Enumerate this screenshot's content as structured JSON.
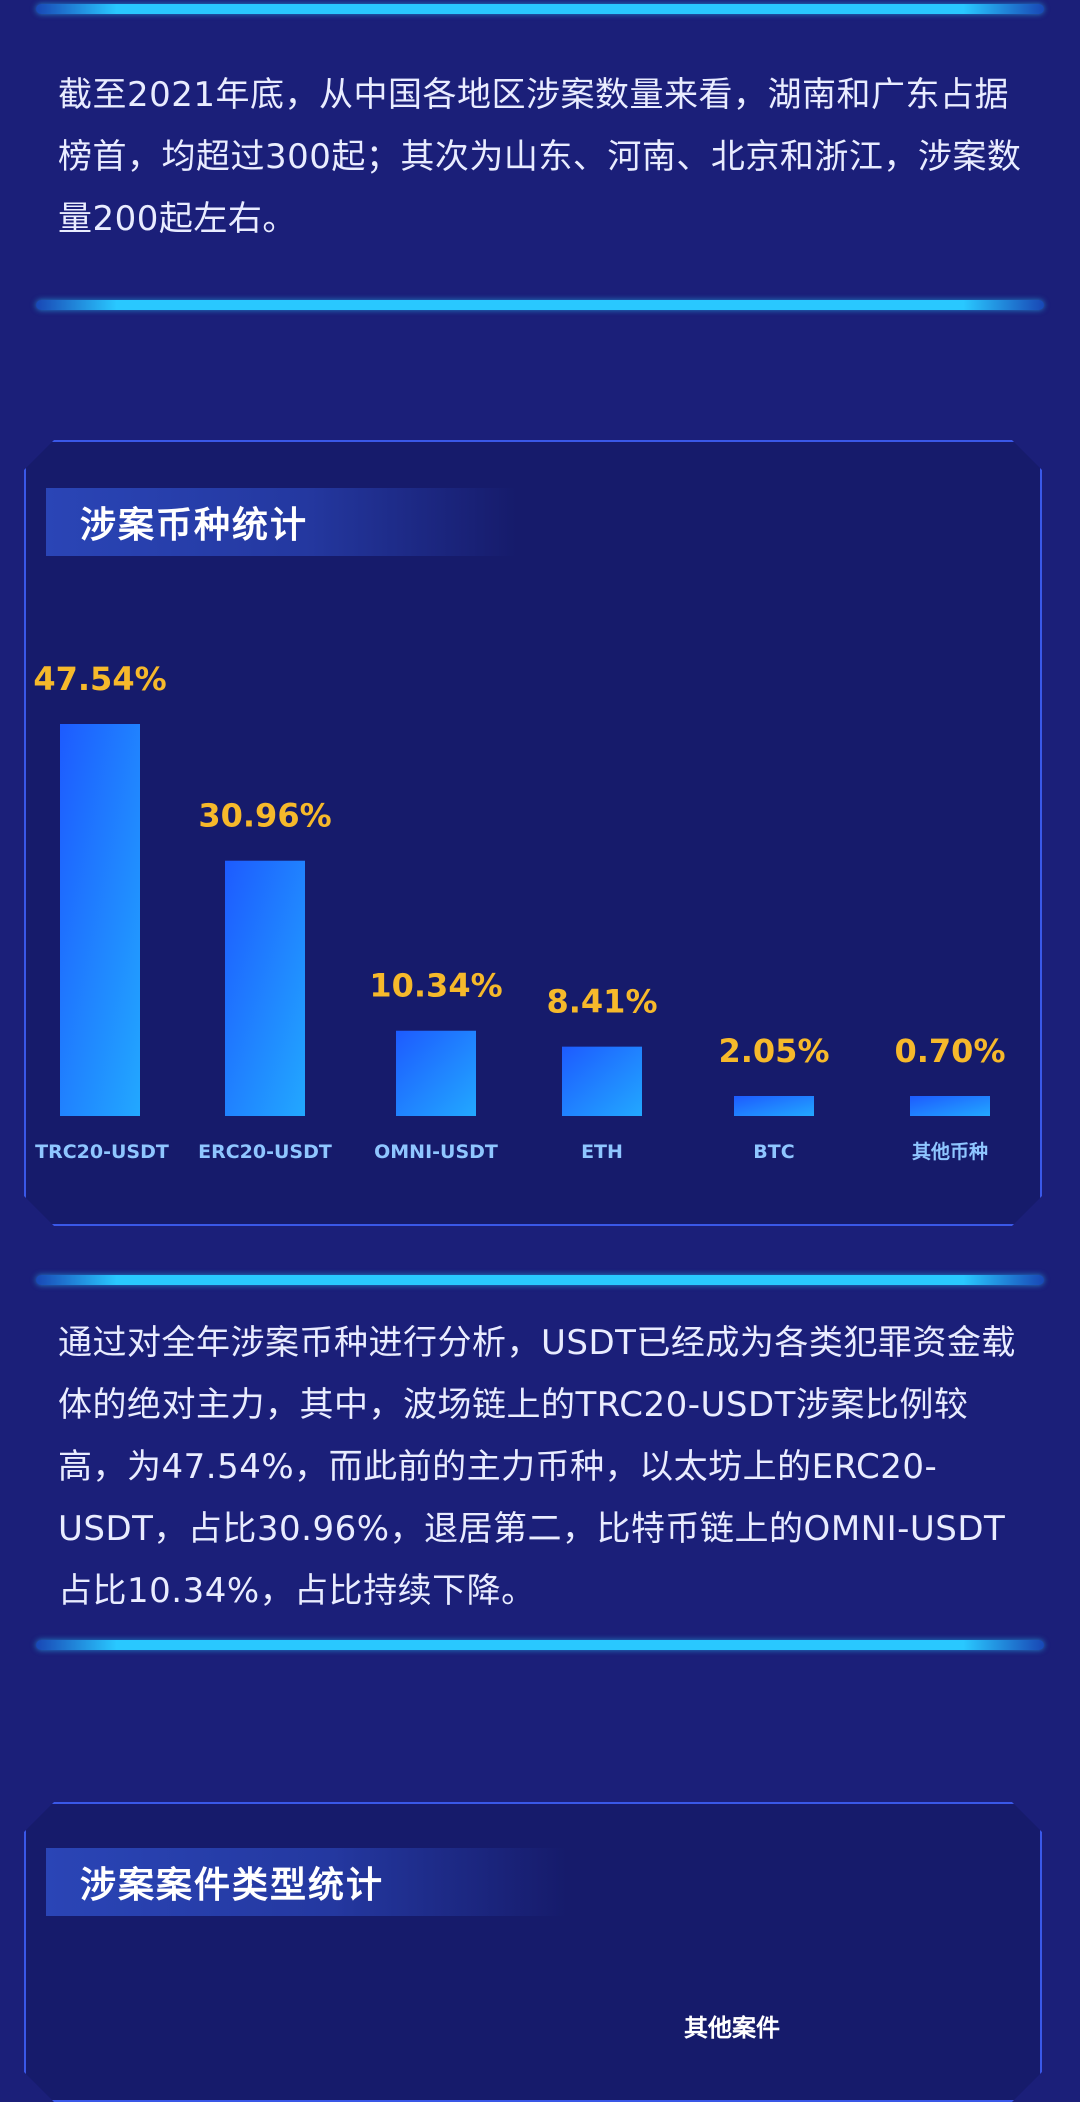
{
  "intro_paragraph": "截至2021年底，从中国各地区涉案数量来看，湖南和广东占据榜首，均超过300起；其次为山东、河南、北京和浙江，涉案数量200起左右。",
  "currency_section": {
    "title": "涉案币种统计",
    "paragraph": "通过对全年涉案币种进行分析，USDT已经成为各类犯罪资金载体的绝对主力，其中，波场链上的TRC20-USDT涉案比例较高，为47.54%，而此前的主力币种，以太坊上的ERC20-USDT，占比30.96%，退居第二，比特币链上的OMNI-USDT占比10.34%，占比持续下降。"
  },
  "case_type_section": {
    "title": "涉案案件类型统计",
    "partial_label": "其他案件"
  },
  "colors": {
    "background": "#1b1f79",
    "panel": "#161b6b",
    "accent_cyan": "#29c8ff",
    "value_label": "#f6b92b",
    "bar_top": "#1d5bff",
    "bar_bottom": "#22a8ff"
  },
  "chart_data": {
    "type": "bar",
    "categories": [
      "TRC20-USDT",
      "ERC20-USDT",
      "OMNI-USDT",
      "ETH",
      "BTC",
      "其他币种"
    ],
    "values": [
      47.54,
      30.96,
      10.34,
      8.41,
      2.05,
      0.7
    ],
    "value_labels": [
      "47.54%",
      "30.96%",
      "10.34%",
      "8.41%",
      "2.05%",
      "0.70%"
    ],
    "title": "涉案币种统计",
    "xlabel": "",
    "ylabel": "",
    "grid": false
  }
}
